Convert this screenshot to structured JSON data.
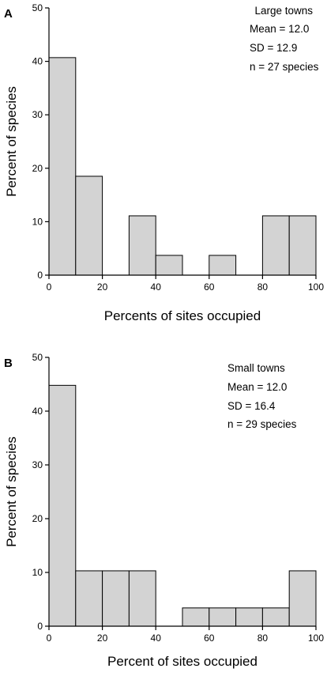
{
  "chart_data": [
    {
      "type": "bar",
      "panel_label": "A",
      "xlabel": "Percents of sites occupied",
      "ylabel": "Percent of species",
      "xlim": [
        0,
        100
      ],
      "ylim": [
        0,
        50
      ],
      "xticks": [
        0,
        20,
        40,
        60,
        80,
        100
      ],
      "yticks": [
        0,
        10,
        20,
        30,
        40,
        50
      ],
      "bins": [
        [
          0,
          10
        ],
        [
          10,
          20
        ],
        [
          20,
          30
        ],
        [
          30,
          40
        ],
        [
          40,
          50
        ],
        [
          50,
          60
        ],
        [
          60,
          70
        ],
        [
          70,
          80
        ],
        [
          80,
          90
        ],
        [
          90,
          100
        ]
      ],
      "values": [
        40.7,
        18.5,
        0,
        11.1,
        3.7,
        0,
        3.7,
        0,
        11.1,
        11.1
      ],
      "annotations": [
        "Large towns",
        "Mean = 12.0",
        "SD = 12.9",
        "n = 27 species"
      ],
      "bar_color": "#d3d3d3"
    },
    {
      "type": "bar",
      "panel_label": "B",
      "xlabel": "Percent of sites occupied",
      "ylabel": "Percent of species",
      "xlim": [
        0,
        100
      ],
      "ylim": [
        0,
        50
      ],
      "xticks": [
        0,
        20,
        40,
        60,
        80,
        100
      ],
      "yticks": [
        0,
        10,
        20,
        30,
        40,
        50
      ],
      "bins": [
        [
          0,
          10
        ],
        [
          10,
          20
        ],
        [
          20,
          30
        ],
        [
          30,
          40
        ],
        [
          40,
          50
        ],
        [
          50,
          60
        ],
        [
          60,
          70
        ],
        [
          70,
          80
        ],
        [
          80,
          90
        ],
        [
          90,
          100
        ]
      ],
      "values": [
        44.8,
        10.3,
        10.3,
        10.3,
        0,
        3.4,
        3.4,
        3.4,
        3.4,
        10.3
      ],
      "annotations": [
        "Small towns",
        "Mean = 12.0",
        "SD = 16.4",
        "n = 29 species"
      ],
      "bar_color": "#d3d3d3"
    }
  ]
}
